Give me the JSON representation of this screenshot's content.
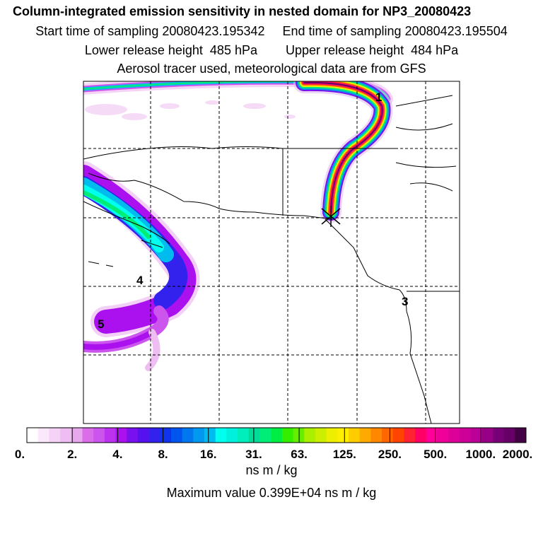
{
  "title": "Column-integrated emission sensitivity in nested domain for NP3_20080423",
  "sampling_line": "Start time of sampling 20080423.195342     End time of sampling 20080423.195504",
  "release_line": "Lower release height  485 hPa        Upper release height  484 hPa",
  "tracer_line": "Aerosol tracer used, meteorological data are from GFS",
  "map": {
    "cluster_labels": [
      "1",
      "3",
      "4",
      "5"
    ]
  },
  "colorbar": {
    "tick_labels": [
      "0.",
      "2.",
      "4.",
      "8.",
      "16.",
      "31.",
      "63.",
      "125.",
      "250.",
      "500.",
      "1000.",
      "2000."
    ],
    "colors": [
      "#ffffff",
      "#fbe9fb",
      "#f4d3f6",
      "#eebdf2",
      "#e8a8ee",
      "#d96ee8",
      "#cc55ee",
      "#bb33ee",
      "#aa11ee",
      "#7711ee",
      "#5511ee",
      "#3322ee",
      "#1133ee",
      "#0055ee",
      "#0077ee",
      "#0099ee",
      "#00bbee",
      "#00ffee",
      "#00f0dd",
      "#00eebb",
      "#00dd99",
      "#00ee77",
      "#00ee44",
      "#33ee00",
      "#66ee00",
      "#aaee00",
      "#ccee00",
      "#eeee00",
      "#ffee00",
      "#ffcc00",
      "#ffaa00",
      "#ff8800",
      "#ff6600",
      "#ff4400",
      "#ff2233",
      "#ff0066",
      "#ff0099",
      "#ee0099",
      "#dd0099",
      "#cc0099",
      "#bb0099",
      "#990088",
      "#770077",
      "#660066",
      "#440044"
    ],
    "unit": "ns m / kg"
  },
  "max_value_line": "Maximum value  0.399E+04 ns m / kg"
}
